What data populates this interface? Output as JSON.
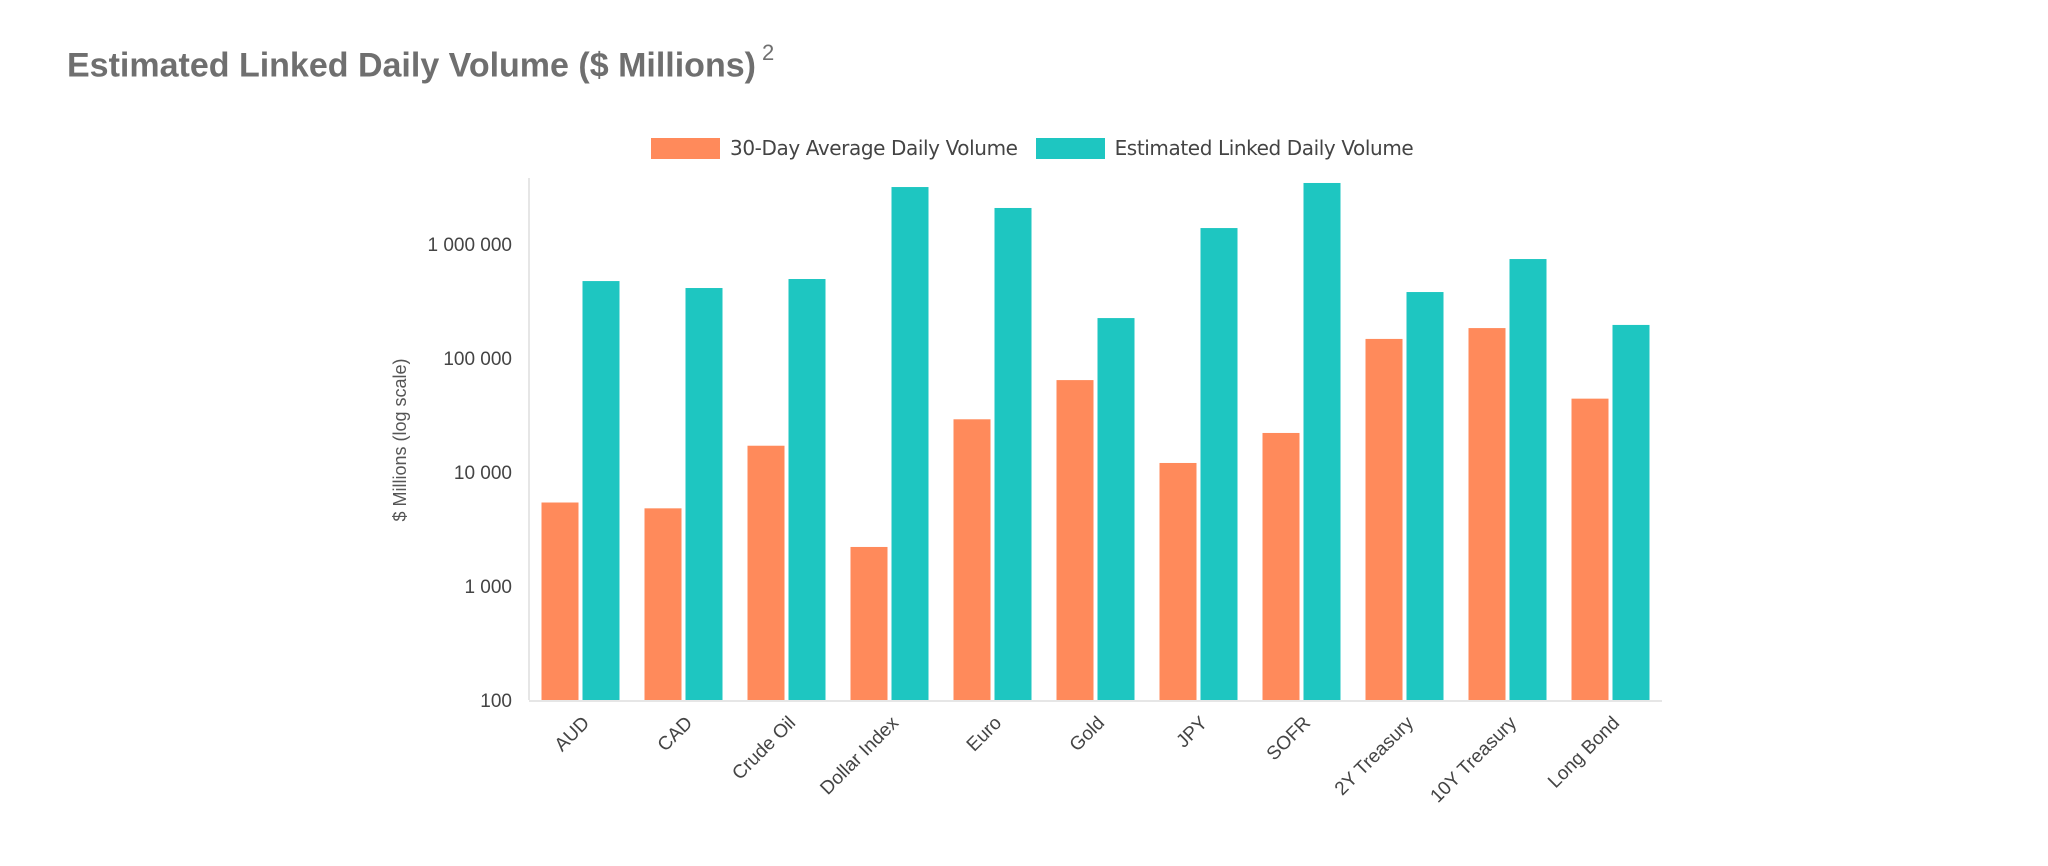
{
  "title": {
    "text": "Estimated Linked Daily Volume ($ Millions)",
    "footnote": "2"
  },
  "colors": {
    "series_a": "#ff8a5b",
    "series_b": "#1ec6c1",
    "axis": "#e6e6e6",
    "text": "#444444",
    "title": "#6f6f6f"
  },
  "chart_data": {
    "type": "bar",
    "title": "Estimated Linked Daily Volume ($ Millions)",
    "xlabel": "",
    "ylabel": "$ Millions (log scale)",
    "yscale": "log",
    "ylim": [
      100,
      4000000
    ],
    "yticks": [
      100,
      1000,
      10000,
      100000,
      1000000
    ],
    "ytick_labels": [
      "100",
      "1 000",
      "10 000",
      "100 000",
      "1 000 000"
    ],
    "grid": false,
    "legend_position": "top-center",
    "categories": [
      "AUD",
      "CAD",
      "Crude Oil",
      "Dollar Index",
      "Euro",
      "Gold",
      "JPY",
      "SOFR",
      "2Y Treasury",
      "10Y Treasury",
      "Long Bond"
    ],
    "series": [
      {
        "name": "30-Day Average Daily Volume",
        "color": "#ff8a5b",
        "values": [
          5400,
          4800,
          17000,
          2200,
          29000,
          64000,
          12000,
          22000,
          147000,
          183000,
          44000
        ]
      },
      {
        "name": "Estimated Linked Daily Volume",
        "color": "#1ec6c1",
        "values": [
          473000,
          411000,
          493000,
          3160000,
          2070000,
          224000,
          1380000,
          3430000,
          379000,
          738000,
          195000
        ]
      }
    ]
  }
}
